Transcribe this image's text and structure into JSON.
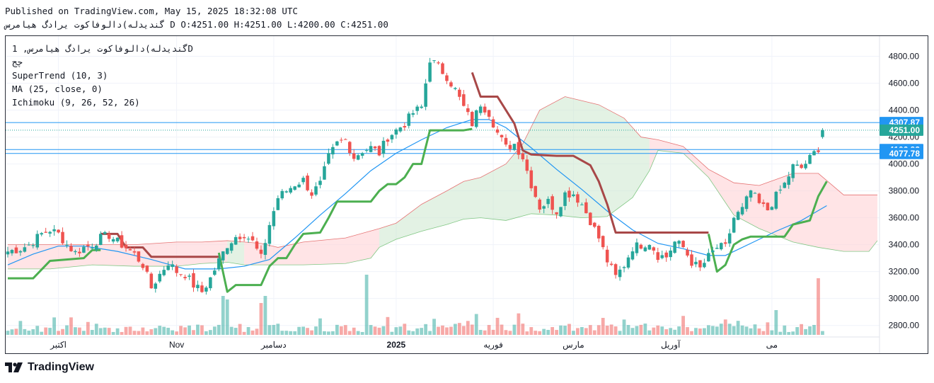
{
  "header": {
    "published": "Published on TradingView.com, May 15, 2025 18:32:08 UTC",
    "ohlc_line": "گندیدله)دالوفاکوت یرادگ هیامرس D O:4251.00 H:4251.00 L:4200.00 C:4251.00"
  },
  "legend": {
    "symbol": "گندیدله)دالوفاکوت یرادگ هیامرس, 1D",
    "sub": "چج",
    "supertrend": "SuperTrend (10, 3)",
    "ma": "MA (25, close, 0)",
    "ichimoku": "Ichimoku (9, 26, 52, 26)"
  },
  "footer": {
    "brand": "TradingView"
  },
  "colors": {
    "up": "#26a69a",
    "down": "#ef5350",
    "supertrend_up": "#4caf50",
    "supertrend_down": "#a84848",
    "ma": "#2196f3",
    "cloud_bull": "#c8e6c9",
    "cloud_bear": "#ffcdd2"
  },
  "chart_data": {
    "type": "candlestick",
    "y_ticks": [
      2800,
      3000,
      3200,
      3400,
      3600,
      3800,
      4000,
      4200,
      4400,
      4600,
      4800
    ],
    "y_tick_labels": [
      "2800.00",
      "3000.00",
      "3200.00",
      "3400.00",
      "3600.00",
      "3800.00",
      "4000.00",
      "4200.00",
      "4400.00",
      "4600.00",
      "4800.00"
    ],
    "ylim": [
      2730,
      4950
    ],
    "x_labels": [
      {
        "bar": 12,
        "label": "اکتبر"
      },
      {
        "bar": 40,
        "label": "Nov"
      },
      {
        "bar": 63,
        "label": "دسامبر"
      },
      {
        "bar": 92,
        "label": "2025"
      },
      {
        "bar": 115,
        "label": "فوریه"
      },
      {
        "bar": 134,
        "label": "مارس"
      },
      {
        "bar": 157,
        "label": "آوریل"
      },
      {
        "bar": 181,
        "label": "می"
      }
    ],
    "price_levels": [
      {
        "value": 4307.87,
        "label": "4307.87",
        "color": "#2196f3"
      },
      {
        "value": 4251.0,
        "label": "4251.00",
        "color": "#26a69a"
      },
      {
        "value": 4106.93,
        "label": "4106.93",
        "color": "#2196f3"
      },
      {
        "value": 4077.78,
        "label": "4077.78",
        "color": "#2196f3"
      }
    ],
    "candle_anchors": [
      [
        0,
        3350
      ],
      [
        3,
        3370
      ],
      [
        5,
        3400
      ],
      [
        8,
        3480
      ],
      [
        10,
        3510
      ],
      [
        12,
        3480
      ],
      [
        14,
        3400
      ],
      [
        16,
        3340
      ],
      [
        18,
        3380
      ],
      [
        20,
        3400
      ],
      [
        22,
        3450
      ],
      [
        24,
        3470
      ],
      [
        26,
        3420
      ],
      [
        28,
        3380
      ],
      [
        30,
        3330
      ],
      [
        32,
        3250
      ],
      [
        34,
        3080
      ],
      [
        36,
        3180
      ],
      [
        38,
        3270
      ],
      [
        40,
        3200
      ],
      [
        42,
        3180
      ],
      [
        44,
        3100
      ],
      [
        46,
        3050
      ],
      [
        48,
        3150
      ],
      [
        50,
        3280
      ],
      [
        52,
        3400
      ],
      [
        54,
        3460
      ],
      [
        56,
        3480
      ],
      [
        58,
        3420
      ],
      [
        60,
        3300
      ],
      [
        62,
        3550
      ],
      [
        64,
        3750
      ],
      [
        66,
        3800
      ],
      [
        68,
        3850
      ],
      [
        70,
        3880
      ],
      [
        72,
        3780
      ],
      [
        74,
        3850
      ],
      [
        76,
        4050
      ],
      [
        78,
        4150
      ],
      [
        80,
        4180
      ],
      [
        82,
        4050
      ],
      [
        84,
        4100
      ],
      [
        86,
        4120
      ],
      [
        88,
        4080
      ],
      [
        90,
        4200
      ],
      [
        92,
        4250
      ],
      [
        94,
        4300
      ],
      [
        96,
        4380
      ],
      [
        98,
        4420
      ],
      [
        100,
        4780
      ],
      [
        102,
        4720
      ],
      [
        104,
        4650
      ],
      [
        106,
        4550
      ],
      [
        108,
        4420
      ],
      [
        110,
        4300
      ],
      [
        112,
        4450
      ],
      [
        114,
        4380
      ],
      [
        116,
        4230
      ],
      [
        118,
        4120
      ],
      [
        120,
        4150
      ],
      [
        122,
        4050
      ],
      [
        124,
        3850
      ],
      [
        126,
        3680
      ],
      [
        128,
        3720
      ],
      [
        130,
        3650
      ],
      [
        132,
        3780
      ],
      [
        134,
        3780
      ],
      [
        136,
        3700
      ],
      [
        138,
        3580
      ],
      [
        140,
        3450
      ],
      [
        142,
        3280
      ],
      [
        144,
        3160
      ],
      [
        146,
        3250
      ],
      [
        148,
        3380
      ],
      [
        150,
        3400
      ],
      [
        152,
        3420
      ],
      [
        154,
        3320
      ],
      [
        156,
        3310
      ],
      [
        158,
        3420
      ],
      [
        160,
        3380
      ],
      [
        162,
        3270
      ],
      [
        164,
        3220
      ],
      [
        166,
        3310
      ],
      [
        168,
        3380
      ],
      [
        170,
        3380
      ],
      [
        172,
        3600
      ],
      [
        174,
        3660
      ],
      [
        176,
        3800
      ],
      [
        178,
        3700
      ],
      [
        180,
        3660
      ],
      [
        182,
        3760
      ],
      [
        184,
        3850
      ],
      [
        186,
        3980
      ],
      [
        188,
        3970
      ],
      [
        190,
        4040
      ],
      [
        192,
        4120
      ],
      [
        193,
        4251
      ]
    ],
    "supertrend_up_segments": [
      [
        [
          0,
          3150
        ],
        [
          6,
          3150
        ],
        [
          10,
          3280
        ],
        [
          18,
          3300
        ],
        [
          20,
          3360
        ],
        [
          22,
          3360
        ]
      ],
      [
        [
          50,
          3340
        ],
        [
          52,
          3050
        ],
        [
          54,
          3100
        ],
        [
          58,
          3100
        ],
        [
          60,
          3100
        ],
        [
          62,
          3240
        ],
        [
          64,
          3300
        ],
        [
          66,
          3300
        ],
        [
          68,
          3400
        ],
        [
          70,
          3480
        ],
        [
          74,
          3490
        ],
        [
          76,
          3600
        ],
        [
          78,
          3720
        ],
        [
          86,
          3720
        ],
        [
          88,
          3800
        ],
        [
          90,
          3850
        ],
        [
          92,
          3850
        ],
        [
          94,
          3900
        ],
        [
          96,
          4000
        ],
        [
          98,
          4000
        ],
        [
          100,
          4250
        ],
        [
          104,
          4250
        ],
        [
          108,
          4250
        ],
        [
          110,
          4260
        ]
      ],
      [
        [
          166,
          3480
        ],
        [
          168,
          3200
        ],
        [
          170,
          3250
        ],
        [
          172,
          3400
        ],
        [
          174,
          3440
        ],
        [
          176,
          3460
        ],
        [
          184,
          3460
        ],
        [
          186,
          3550
        ],
        [
          190,
          3580
        ],
        [
          192,
          3760
        ],
        [
          194,
          3870
        ]
      ]
    ],
    "supertrend_down_segments": [
      [
        [
          22,
          3480
        ],
        [
          26,
          3480
        ],
        [
          28,
          3380
        ],
        [
          32,
          3380
        ],
        [
          34,
          3310
        ],
        [
          50,
          3310
        ]
      ],
      [
        [
          110,
          4680
        ],
        [
          112,
          4500
        ],
        [
          116,
          4500
        ],
        [
          118,
          4400
        ],
        [
          120,
          4300
        ],
        [
          122,
          4100
        ],
        [
          124,
          4070
        ],
        [
          130,
          4060
        ],
        [
          134,
          4060
        ],
        [
          138,
          3990
        ],
        [
          140,
          3870
        ],
        [
          142,
          3700
        ],
        [
          144,
          3490
        ],
        [
          146,
          3490
        ],
        [
          166,
          3490
        ]
      ]
    ],
    "ma_points": [
      [
        0,
        3250
      ],
      [
        6,
        3330
      ],
      [
        12,
        3390
      ],
      [
        18,
        3390
      ],
      [
        26,
        3350
      ],
      [
        34,
        3290
      ],
      [
        42,
        3220
      ],
      [
        50,
        3220
      ],
      [
        56,
        3240
      ],
      [
        62,
        3290
      ],
      [
        68,
        3450
      ],
      [
        74,
        3620
      ],
      [
        80,
        3780
      ],
      [
        86,
        3950
      ],
      [
        92,
        4080
      ],
      [
        98,
        4180
      ],
      [
        104,
        4270
      ],
      [
        110,
        4330
      ],
      [
        114,
        4330
      ],
      [
        118,
        4270
      ],
      [
        124,
        4120
      ],
      [
        130,
        3960
      ],
      [
        136,
        3810
      ],
      [
        142,
        3650
      ],
      [
        148,
        3510
      ],
      [
        154,
        3410
      ],
      [
        160,
        3370
      ],
      [
        166,
        3320
      ],
      [
        170,
        3320
      ],
      [
        176,
        3410
      ],
      [
        182,
        3500
      ],
      [
        188,
        3580
      ],
      [
        194,
        3690
      ]
    ],
    "cloud_top": [
      [
        0,
        3400
      ],
      [
        10,
        3400
      ],
      [
        20,
        3400
      ],
      [
        30,
        3400
      ],
      [
        40,
        3420
      ],
      [
        46,
        3420
      ],
      [
        52,
        3430
      ],
      [
        56,
        3420
      ],
      [
        60,
        3410
      ],
      [
        64,
        3380
      ],
      [
        70,
        3420
      ],
      [
        80,
        3450
      ],
      [
        88,
        3520
      ],
      [
        92,
        3560
      ],
      [
        98,
        3700
      ],
      [
        104,
        3800
      ],
      [
        108,
        3870
      ],
      [
        112,
        3900
      ],
      [
        118,
        4000
      ],
      [
        122,
        4150
      ],
      [
        126,
        4400
      ],
      [
        132,
        4500
      ],
      [
        140,
        4440
      ],
      [
        146,
        4340
      ],
      [
        150,
        4200
      ],
      [
        154,
        4180
      ],
      [
        160,
        4130
      ],
      [
        166,
        3960
      ],
      [
        172,
        3860
      ],
      [
        178,
        3840
      ],
      [
        186,
        3930
      ],
      [
        192,
        3930
      ],
      [
        198,
        3770
      ],
      [
        206,
        3770
      ]
    ],
    "cloud_bottom": [
      [
        0,
        3220
      ],
      [
        10,
        3220
      ],
      [
        20,
        3250
      ],
      [
        30,
        3240
      ],
      [
        40,
        3240
      ],
      [
        46,
        3260
      ],
      [
        52,
        3270
      ],
      [
        56,
        3250
      ],
      [
        60,
        3250
      ],
      [
        64,
        3250
      ],
      [
        70,
        3250
      ],
      [
        80,
        3260
      ],
      [
        86,
        3300
      ],
      [
        88,
        3380
      ],
      [
        92,
        3440
      ],
      [
        98,
        3500
      ],
      [
        104,
        3550
      ],
      [
        108,
        3590
      ],
      [
        112,
        3600
      ],
      [
        118,
        3580
      ],
      [
        124,
        3630
      ],
      [
        130,
        3620
      ],
      [
        136,
        3600
      ],
      [
        142,
        3610
      ],
      [
        148,
        3750
      ],
      [
        152,
        3950
      ],
      [
        154,
        4100
      ],
      [
        160,
        4080
      ],
      [
        166,
        3900
      ],
      [
        172,
        3620
      ],
      [
        178,
        3520
      ],
      [
        186,
        3420
      ],
      [
        192,
        3380
      ],
      [
        198,
        3350
      ],
      [
        204,
        3350
      ],
      [
        206,
        3430
      ]
    ],
    "bull_cloud_ranges": [
      [
        52,
        56
      ],
      [
        88,
        152
      ]
    ],
    "volume_max": 1.0,
    "volume_spikes": [
      [
        51,
        0.55
      ],
      [
        52,
        0.5
      ],
      [
        60,
        0.45
      ],
      [
        61,
        0.55
      ],
      [
        85,
        0.85
      ],
      [
        192,
        0.8
      ]
    ]
  }
}
